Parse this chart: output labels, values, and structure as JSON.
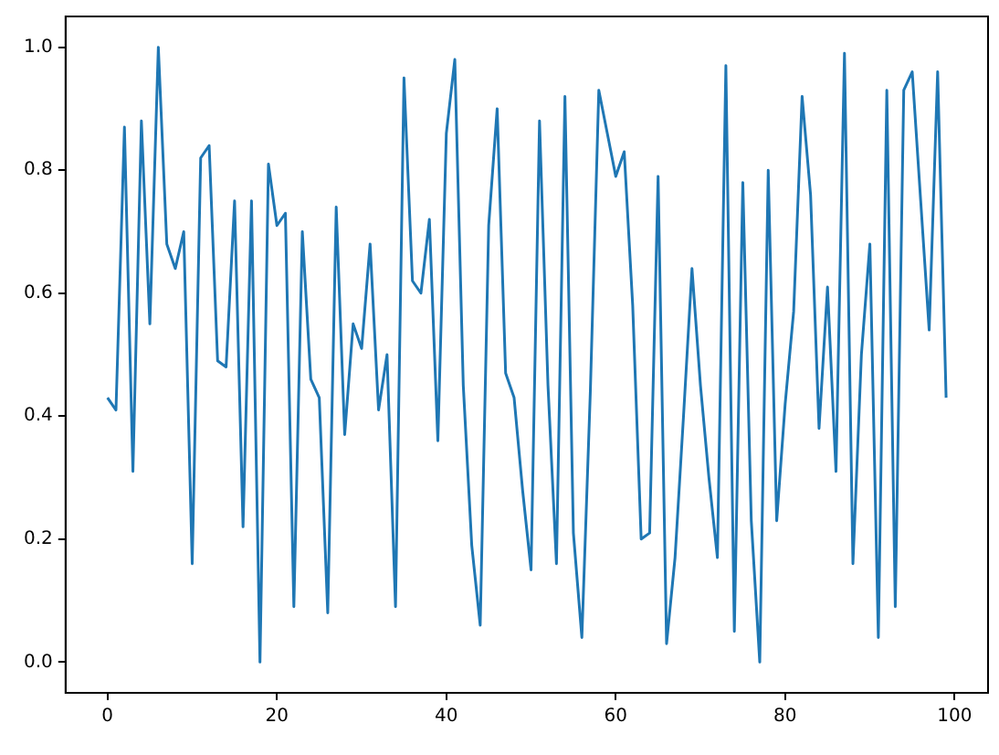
{
  "chart_data": {
    "type": "line",
    "x": [
      0,
      1,
      2,
      3,
      4,
      5,
      6,
      7,
      8,
      9,
      10,
      11,
      12,
      13,
      14,
      15,
      16,
      17,
      18,
      19,
      20,
      21,
      22,
      23,
      24,
      25,
      26,
      27,
      28,
      29,
      30,
      31,
      32,
      33,
      34,
      35,
      36,
      37,
      38,
      39,
      40,
      41,
      42,
      43,
      44,
      45,
      46,
      47,
      48,
      49,
      50,
      51,
      52,
      53,
      54,
      55,
      56,
      57,
      58,
      59,
      60,
      61,
      62,
      63,
      64,
      65,
      66,
      67,
      68,
      69,
      70,
      71,
      72,
      73,
      74,
      75,
      76,
      77,
      78,
      79,
      80,
      81,
      82,
      83,
      84,
      85,
      86,
      87,
      88,
      89,
      90,
      91,
      92,
      93,
      94,
      95,
      96,
      97,
      98,
      99
    ],
    "series": [
      {
        "color": "#1f77b4",
        "values": [
          0.43,
          0.41,
          0.87,
          0.31,
          0.88,
          0.55,
          1.0,
          0.68,
          0.64,
          0.7,
          0.16,
          0.82,
          0.84,
          0.49,
          0.48,
          0.75,
          0.22,
          0.75,
          0.0,
          0.81,
          0.71,
          0.73,
          0.09,
          0.7,
          0.46,
          0.43,
          0.08,
          0.74,
          0.37,
          0.55,
          0.51,
          0.68,
          0.41,
          0.5,
          0.09,
          0.95,
          0.62,
          0.6,
          0.72,
          0.36,
          0.86,
          0.98,
          0.45,
          0.19,
          0.06,
          0.71,
          0.9,
          0.47,
          0.43,
          0.28,
          0.15,
          0.88,
          0.45,
          0.16,
          0.92,
          0.21,
          0.04,
          0.44,
          0.93,
          0.86,
          0.79,
          0.83,
          0.58,
          0.2,
          0.21,
          0.79,
          0.03,
          0.17,
          0.4,
          0.64,
          0.45,
          0.3,
          0.17,
          0.97,
          0.05,
          0.78,
          0.23,
          0.0,
          0.8,
          0.23,
          0.42,
          0.57,
          0.92,
          0.76,
          0.38,
          0.61,
          0.31,
          0.99,
          0.16,
          0.5,
          0.68,
          0.04,
          0.93,
          0.09,
          0.93,
          0.96,
          0.75,
          0.54,
          0.96,
          0.43
        ]
      }
    ],
    "xlim": [
      -4.95,
      103.95
    ],
    "xticks": [
      0,
      20,
      40,
      60,
      80,
      100
    ],
    "ylim": [
      -0.05,
      1.05
    ],
    "yticks": [
      {
        "value": 0,
        "label": "0.0"
      },
      {
        "value": 0.2,
        "label": "0.2"
      },
      {
        "value": 0.4,
        "label": "0.4"
      },
      {
        "value": 0.6,
        "label": "0.6"
      },
      {
        "value": 0.8,
        "label": "0.8"
      },
      {
        "value": 1,
        "label": "1.0"
      }
    ],
    "grid": false,
    "legend": false,
    "marker": "none",
    "line_style": "solid"
  }
}
